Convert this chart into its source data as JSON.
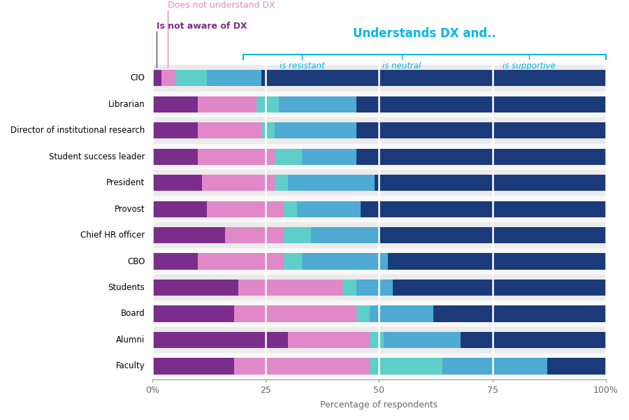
{
  "categories": [
    "CIO",
    "Librarian",
    "Director of institutional research",
    "Student success leader",
    "President",
    "Provost",
    "Chief HR officer",
    "CBO",
    "Students",
    "Board",
    "Alumni",
    "Faculty"
  ],
  "rows": [
    [
      2,
      3,
      7,
      12,
      76
    ],
    [
      10,
      13,
      5,
      17,
      55
    ],
    [
      10,
      14,
      3,
      18,
      55
    ],
    [
      10,
      17,
      6,
      12,
      55
    ],
    [
      11,
      16,
      3,
      19,
      51
    ],
    [
      12,
      17,
      3,
      14,
      54
    ],
    [
      16,
      13,
      6,
      15,
      50
    ],
    [
      10,
      19,
      4,
      19,
      48
    ],
    [
      19,
      23,
      3,
      8,
      47
    ],
    [
      18,
      27,
      3,
      14,
      38
    ],
    [
      30,
      18,
      3,
      17,
      32
    ],
    [
      18,
      30,
      16,
      23,
      13
    ]
  ],
  "seg_colors": [
    "#7B2D8B",
    "#E088C8",
    "#5ECFC8",
    "#4FAAD4",
    "#1B3A7A"
  ],
  "stripe_colors": [
    "#ebebeb",
    "#f8f8f8"
  ],
  "bracket_color": "#00B8E6",
  "not_aware_color": "#7B2D8B",
  "not_understand_color": "#E088C8",
  "title_understands": "Understands DX and..",
  "label_resistant": "is resistant",
  "label_neutral": "is neutral",
  "label_supportive": "is supportive",
  "label_not_aware": "Is not aware of DX",
  "label_not_understand": "Does not understand DX",
  "xlabel": "Percentage of respondents",
  "xticks": [
    0,
    25,
    50,
    75,
    100
  ],
  "xticklabels": [
    "0%",
    "25",
    "50",
    "75",
    "100%"
  ]
}
